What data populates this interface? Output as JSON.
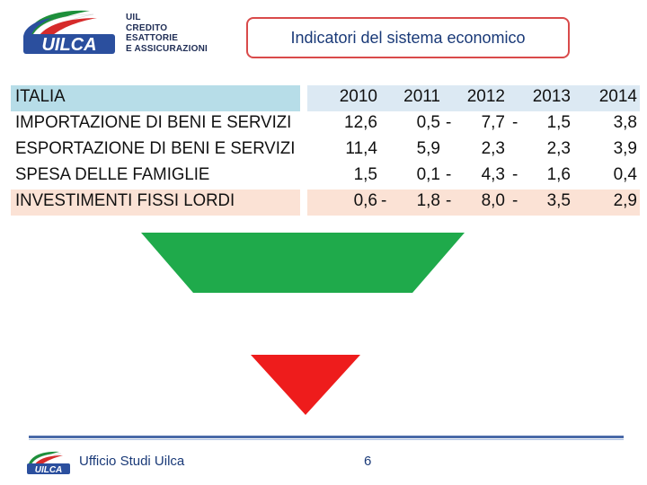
{
  "header": {
    "logo_word": "UILCA",
    "org_lines": [
      "UIL",
      "CREDITO",
      "ESATTORIE",
      "E ASSICURAZIONI"
    ],
    "title": "Indicatori del sistema economico"
  },
  "table": {
    "header_label": "ITALIA",
    "years": [
      "2010",
      "2011",
      "2012",
      "2013",
      "2014"
    ],
    "rows": [
      {
        "label": "IMPORTAZIONE DI BENI E SERVIZI",
        "values": [
          "12,6",
          "0,5",
          "7,7",
          "1,5",
          "3,8"
        ],
        "signs": [
          "",
          "-",
          "-",
          "",
          ""
        ]
      },
      {
        "label": "ESPORTAZIONE DI BENI E SERVIZI",
        "values": [
          "11,4",
          "5,9",
          "2,3",
          "2,3",
          "3,9"
        ],
        "signs": [
          "",
          "",
          "",
          "",
          ""
        ]
      },
      {
        "label": "SPESA DELLE FAMIGLIE",
        "values": [
          "1,5",
          "0,1",
          "4,3",
          "1,6",
          "0,4"
        ],
        "signs": [
          "",
          "-",
          "-",
          "",
          ""
        ]
      },
      {
        "label": "INVESTIMENTI FISSI LORDI",
        "values": [
          "0,6",
          "1,8",
          "8,0",
          "3,5",
          "2,9"
        ],
        "signs": [
          "-",
          "-",
          "-",
          "",
          ""
        ]
      }
    ]
  },
  "footer": {
    "logo_word": "UILCA",
    "text": "Ufficio Studi Uilca",
    "page_number": "6"
  },
  "colors": {
    "header_band": "#b7dde8",
    "highlight_band": "#fbe2d5",
    "green_shape": "#1faa4b",
    "red_shape": "#ee1c1c",
    "title_border": "#d94a4a",
    "accent_blue": "#1a3a78"
  }
}
